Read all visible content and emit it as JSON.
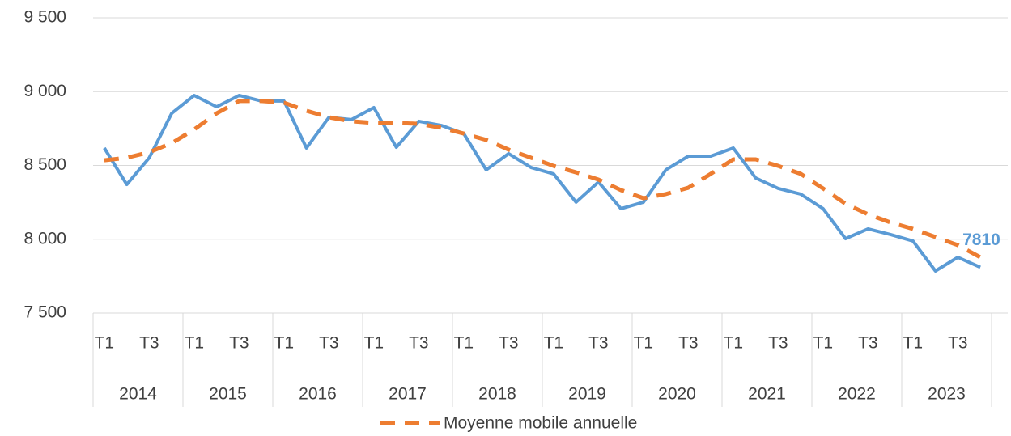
{
  "chart_data": {
    "type": "line",
    "categories": [
      "T1",
      null,
      "T3",
      null,
      "T1",
      null,
      "T3",
      null,
      "T1",
      null,
      "T3",
      null,
      "T1",
      null,
      "T3",
      null,
      "T1",
      null,
      "T3",
      null,
      "T1",
      null,
      "T3",
      null,
      "T1",
      null,
      "T3",
      null,
      "T1",
      null,
      "T3",
      null,
      "T1",
      null,
      "T3",
      null,
      "T1",
      null,
      "T3",
      null
    ],
    "year_groups": [
      "2014",
      "2015",
      "2016",
      "2017",
      "2018",
      "2019",
      "2020",
      "2021",
      "2022",
      "2023"
    ],
    "series": [
      {
        "color": "#5b9bd5",
        "line_style": "solid",
        "values": [
          8618,
          8371,
          8552,
          8853,
          8974,
          8897,
          8974,
          8936,
          8936,
          8618,
          8826,
          8810,
          8892,
          8623,
          8799,
          8771,
          8716,
          8470,
          8580,
          8486,
          8443,
          8251,
          8388,
          8207,
          8251,
          8470,
          8563,
          8563,
          8618,
          8415,
          8344,
          8306,
          8207,
          8004,
          8070,
          8032,
          7988,
          7785,
          7878,
          7810
        ],
        "last_value_label": true
      },
      {
        "name": "Moyenne mobile annuelle",
        "color": "#ed7d31",
        "line_style": "dashed",
        "values": [
          8535,
          8552,
          8590,
          8651,
          8744,
          8853,
          8936,
          8936,
          8925,
          8870,
          8826,
          8799,
          8788,
          8788,
          8782,
          8755,
          8716,
          8673,
          8607,
          8552,
          8497,
          8453,
          8404,
          8333,
          8278,
          8306,
          8349,
          8443,
          8541,
          8541,
          8497,
          8443,
          8344,
          8240,
          8169,
          8114,
          8070,
          8015,
          7960,
          7878
        ]
      }
    ],
    "ylim": [
      7500,
      9500
    ],
    "yticks": [
      {
        "value": 7500,
        "label": "7 500"
      },
      {
        "value": 8000,
        "label": "8 000"
      },
      {
        "value": 8500,
        "label": "8 500"
      },
      {
        "value": 9000,
        "label": "9 000"
      },
      {
        "value": 9500,
        "label": "9 500"
      }
    ],
    "grid": true,
    "legend": "bottom"
  }
}
